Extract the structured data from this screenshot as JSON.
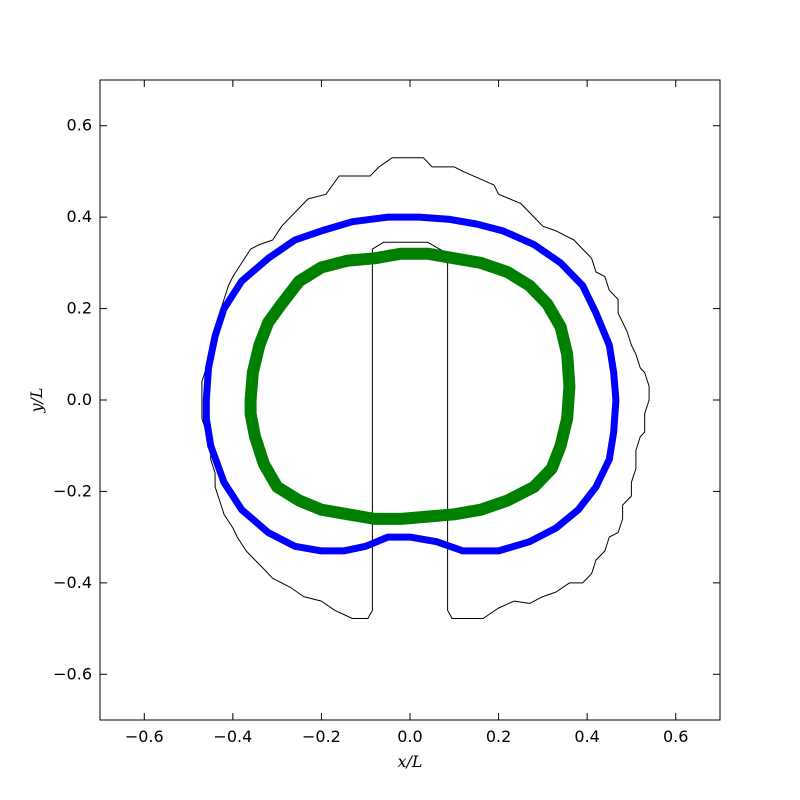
{
  "chart_data": {
    "type": "line",
    "xlabel": "x/L",
    "ylabel": "y/L",
    "xlim": [
      -0.7,
      0.7
    ],
    "ylim": [
      -0.7,
      0.7
    ],
    "xticks": [
      -0.6,
      -0.4,
      -0.2,
      0.0,
      0.2,
      0.4,
      0.6
    ],
    "yticks": [
      -0.6,
      -0.4,
      -0.2,
      0.0,
      0.2,
      0.4,
      0.6
    ],
    "xtick_labels": [
      "−0.6",
      "−0.4",
      "−0.2",
      "0.0",
      "0.2",
      "0.4",
      "0.6"
    ],
    "ytick_labels": [
      "−0.6",
      "−0.4",
      "−0.2",
      "0.0",
      "0.2",
      "0.4",
      "0.6"
    ],
    "grid": false,
    "legend": false,
    "series": [
      {
        "color": "#000000",
        "style": "thin",
        "points": [
          [
            -0.085,
            -0.46
          ],
          [
            -0.085,
            0.33
          ],
          [
            -0.06,
            0.345
          ],
          [
            0.04,
            0.345
          ],
          [
            0.085,
            0.32
          ],
          [
            0.085,
            -0.46
          ],
          [
            0.095,
            -0.478
          ],
          [
            0.165,
            -0.478
          ],
          [
            0.2,
            -0.455
          ],
          [
            0.235,
            -0.44
          ],
          [
            0.27,
            -0.445
          ],
          [
            0.3,
            -0.43
          ],
          [
            0.33,
            -0.42
          ],
          [
            0.36,
            -0.4
          ],
          [
            0.39,
            -0.4
          ],
          [
            0.41,
            -0.38
          ],
          [
            0.42,
            -0.35
          ],
          [
            0.44,
            -0.33
          ],
          [
            0.45,
            -0.3
          ],
          [
            0.47,
            -0.29
          ],
          [
            0.48,
            -0.26
          ],
          [
            0.48,
            -0.23
          ],
          [
            0.5,
            -0.21
          ],
          [
            0.5,
            -0.18
          ],
          [
            0.51,
            -0.15
          ],
          [
            0.51,
            -0.11
          ],
          [
            0.52,
            -0.08
          ],
          [
            0.53,
            -0.07
          ],
          [
            0.53,
            -0.03
          ],
          [
            0.54,
            0.0
          ],
          [
            0.54,
            0.03
          ],
          [
            0.53,
            0.06
          ],
          [
            0.52,
            0.07
          ],
          [
            0.51,
            0.1
          ],
          [
            0.5,
            0.12
          ],
          [
            0.49,
            0.15
          ],
          [
            0.48,
            0.17
          ],
          [
            0.47,
            0.19
          ],
          [
            0.47,
            0.22
          ],
          [
            0.45,
            0.24
          ],
          [
            0.44,
            0.27
          ],
          [
            0.42,
            0.28
          ],
          [
            0.41,
            0.31
          ],
          [
            0.39,
            0.33
          ],
          [
            0.37,
            0.35
          ],
          [
            0.33,
            0.37
          ],
          [
            0.3,
            0.38
          ],
          [
            0.28,
            0.4
          ],
          [
            0.25,
            0.43
          ],
          [
            0.2,
            0.45
          ],
          [
            0.19,
            0.47
          ],
          [
            0.12,
            0.5
          ],
          [
            0.1,
            0.51
          ],
          [
            0.05,
            0.51
          ],
          [
            0.03,
            0.53
          ],
          [
            -0.04,
            0.53
          ],
          [
            -0.07,
            0.51
          ],
          [
            -0.09,
            0.49
          ],
          [
            -0.16,
            0.49
          ],
          [
            -0.19,
            0.45
          ],
          [
            -0.23,
            0.44
          ],
          [
            -0.27,
            0.4
          ],
          [
            -0.29,
            0.38
          ],
          [
            -0.31,
            0.35
          ],
          [
            -0.34,
            0.34
          ],
          [
            -0.36,
            0.33
          ],
          [
            -0.38,
            0.3
          ],
          [
            -0.4,
            0.27
          ],
          [
            -0.41,
            0.25
          ],
          [
            -0.42,
            0.22
          ],
          [
            -0.43,
            0.19
          ],
          [
            -0.43,
            0.16
          ],
          [
            -0.44,
            0.12
          ],
          [
            -0.45,
            0.1
          ],
          [
            -0.46,
            0.07
          ],
          [
            -0.47,
            0.04
          ],
          [
            -0.47,
            0.0
          ],
          [
            -0.47,
            -0.04
          ],
          [
            -0.46,
            -0.07
          ],
          [
            -0.45,
            -0.09
          ],
          [
            -0.45,
            -0.13
          ],
          [
            -0.44,
            -0.16
          ],
          [
            -0.44,
            -0.19
          ],
          [
            -0.43,
            -0.22
          ],
          [
            -0.42,
            -0.25
          ],
          [
            -0.4,
            -0.28
          ],
          [
            -0.39,
            -0.3
          ],
          [
            -0.37,
            -0.33
          ],
          [
            -0.35,
            -0.35
          ],
          [
            -0.33,
            -0.37
          ],
          [
            -0.31,
            -0.39
          ],
          [
            -0.27,
            -0.41
          ],
          [
            -0.24,
            -0.43
          ],
          [
            -0.2,
            -0.44
          ],
          [
            -0.17,
            -0.46
          ],
          [
            -0.13,
            -0.478
          ],
          [
            -0.095,
            -0.478
          ],
          [
            -0.085,
            -0.46
          ]
        ]
      },
      {
        "color": "#0000ff",
        "style": "medium",
        "points": [
          [
            -0.46,
            0.0
          ],
          [
            -0.455,
            0.07
          ],
          [
            -0.44,
            0.14
          ],
          [
            -0.42,
            0.2
          ],
          [
            -0.38,
            0.26
          ],
          [
            -0.32,
            0.31
          ],
          [
            -0.26,
            0.35
          ],
          [
            -0.2,
            0.37
          ],
          [
            -0.13,
            0.39
          ],
          [
            -0.05,
            0.4
          ],
          [
            0.02,
            0.4
          ],
          [
            0.09,
            0.395
          ],
          [
            0.15,
            0.385
          ],
          [
            0.21,
            0.37
          ],
          [
            0.28,
            0.34
          ],
          [
            0.34,
            0.3
          ],
          [
            0.39,
            0.25
          ],
          [
            0.42,
            0.19
          ],
          [
            0.45,
            0.12
          ],
          [
            0.46,
            0.06
          ],
          [
            0.465,
            0.0
          ],
          [
            0.46,
            -0.07
          ],
          [
            0.45,
            -0.13
          ],
          [
            0.42,
            -0.19
          ],
          [
            0.38,
            -0.24
          ],
          [
            0.33,
            -0.28
          ],
          [
            0.27,
            -0.31
          ],
          [
            0.2,
            -0.33
          ],
          [
            0.12,
            -0.33
          ],
          [
            0.06,
            -0.31
          ],
          [
            0.0,
            -0.3
          ],
          [
            -0.05,
            -0.3
          ],
          [
            -0.1,
            -0.32
          ],
          [
            -0.15,
            -0.33
          ],
          [
            -0.2,
            -0.33
          ],
          [
            -0.26,
            -0.32
          ],
          [
            -0.32,
            -0.29
          ],
          [
            -0.38,
            -0.24
          ],
          [
            -0.42,
            -0.18
          ],
          [
            -0.45,
            -0.1
          ],
          [
            -0.46,
            -0.04
          ],
          [
            -0.46,
            0.0
          ]
        ]
      },
      {
        "color": "#008000",
        "style": "thick",
        "points": [
          [
            -0.36,
            0.0
          ],
          [
            -0.355,
            0.06
          ],
          [
            -0.34,
            0.12
          ],
          [
            -0.32,
            0.17
          ],
          [
            -0.29,
            0.21
          ],
          [
            -0.25,
            0.26
          ],
          [
            -0.2,
            0.29
          ],
          [
            -0.14,
            0.305
          ],
          [
            -0.08,
            0.31
          ],
          [
            -0.02,
            0.32
          ],
          [
            0.04,
            0.32
          ],
          [
            0.1,
            0.31
          ],
          [
            0.16,
            0.3
          ],
          [
            0.22,
            0.28
          ],
          [
            0.27,
            0.25
          ],
          [
            0.31,
            0.21
          ],
          [
            0.34,
            0.16
          ],
          [
            0.355,
            0.1
          ],
          [
            0.36,
            0.03
          ],
          [
            0.355,
            -0.04
          ],
          [
            0.34,
            -0.1
          ],
          [
            0.32,
            -0.15
          ],
          [
            0.28,
            -0.19
          ],
          [
            0.22,
            -0.22
          ],
          [
            0.16,
            -0.24
          ],
          [
            0.1,
            -0.25
          ],
          [
            0.04,
            -0.255
          ],
          [
            -0.02,
            -0.26
          ],
          [
            -0.08,
            -0.26
          ],
          [
            -0.14,
            -0.25
          ],
          [
            -0.2,
            -0.24
          ],
          [
            -0.25,
            -0.22
          ],
          [
            -0.3,
            -0.19
          ],
          [
            -0.33,
            -0.14
          ],
          [
            -0.35,
            -0.08
          ],
          [
            -0.36,
            -0.03
          ],
          [
            -0.36,
            0.0
          ]
        ]
      }
    ]
  }
}
